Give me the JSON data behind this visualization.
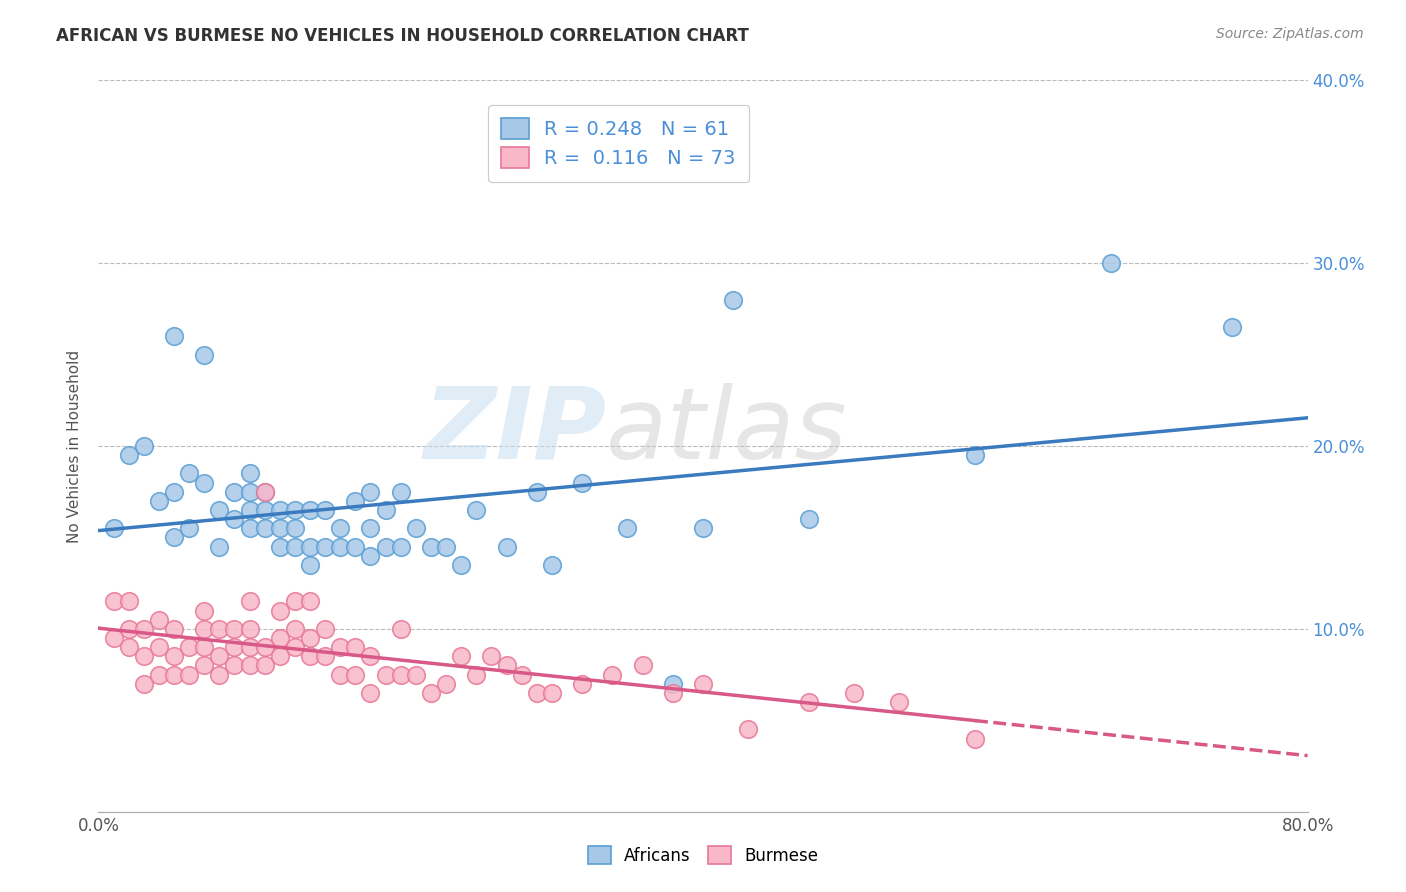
{
  "title": "AFRICAN VS BURMESE NO VEHICLES IN HOUSEHOLD CORRELATION CHART",
  "source": "Source: ZipAtlas.com",
  "ylabel": "No Vehicles in Household",
  "xlim": [
    0.0,
    0.8
  ],
  "ylim": [
    0.0,
    0.4
  ],
  "xticks": [
    0.0,
    0.8
  ],
  "xtick_labels": [
    "0.0%",
    "80.0%"
  ],
  "yticks": [
    0.0,
    0.1,
    0.2,
    0.3,
    0.4
  ],
  "ytick_labels_right": [
    "",
    "10.0%",
    "20.0%",
    "30.0%",
    "40.0%"
  ],
  "africans_color": "#a8c8e8",
  "africans_edge_color": "#5a9fd4",
  "africans_line_color": "#3a7abf",
  "burmese_color": "#f8b8c8",
  "burmese_edge_color": "#e87898",
  "burmese_line_color": "#d85888",
  "background_color": "#ffffff",
  "watermark_zip": "ZIP",
  "watermark_atlas": "atlas",
  "R_african": 0.248,
  "N_african": 61,
  "R_burmese": 0.116,
  "N_burmese": 73,
  "legend_label_african": "Africans",
  "legend_label_burmese": "Burmese",
  "africans_x": [
    0.01,
    0.02,
    0.03,
    0.04,
    0.05,
    0.05,
    0.05,
    0.06,
    0.06,
    0.07,
    0.07,
    0.08,
    0.08,
    0.09,
    0.09,
    0.1,
    0.1,
    0.1,
    0.1,
    0.11,
    0.11,
    0.11,
    0.12,
    0.12,
    0.12,
    0.13,
    0.13,
    0.13,
    0.14,
    0.14,
    0.14,
    0.15,
    0.15,
    0.16,
    0.16,
    0.17,
    0.17,
    0.18,
    0.18,
    0.18,
    0.19,
    0.19,
    0.2,
    0.2,
    0.21,
    0.22,
    0.23,
    0.24,
    0.25,
    0.27,
    0.29,
    0.3,
    0.32,
    0.35,
    0.38,
    0.4,
    0.42,
    0.47,
    0.58,
    0.67,
    0.75
  ],
  "africans_y": [
    0.155,
    0.195,
    0.2,
    0.17,
    0.15,
    0.175,
    0.26,
    0.155,
    0.185,
    0.18,
    0.25,
    0.145,
    0.165,
    0.16,
    0.175,
    0.155,
    0.165,
    0.175,
    0.185,
    0.155,
    0.165,
    0.175,
    0.145,
    0.155,
    0.165,
    0.145,
    0.155,
    0.165,
    0.135,
    0.145,
    0.165,
    0.145,
    0.165,
    0.145,
    0.155,
    0.145,
    0.17,
    0.14,
    0.155,
    0.175,
    0.145,
    0.165,
    0.145,
    0.175,
    0.155,
    0.145,
    0.145,
    0.135,
    0.165,
    0.145,
    0.175,
    0.135,
    0.18,
    0.155,
    0.07,
    0.155,
    0.28,
    0.16,
    0.195,
    0.3,
    0.265
  ],
  "burmese_x": [
    0.01,
    0.01,
    0.02,
    0.02,
    0.02,
    0.03,
    0.03,
    0.03,
    0.04,
    0.04,
    0.04,
    0.05,
    0.05,
    0.05,
    0.06,
    0.06,
    0.07,
    0.07,
    0.07,
    0.07,
    0.08,
    0.08,
    0.08,
    0.09,
    0.09,
    0.09,
    0.1,
    0.1,
    0.1,
    0.1,
    0.11,
    0.11,
    0.11,
    0.12,
    0.12,
    0.12,
    0.13,
    0.13,
    0.13,
    0.14,
    0.14,
    0.14,
    0.15,
    0.15,
    0.16,
    0.16,
    0.17,
    0.17,
    0.18,
    0.18,
    0.19,
    0.2,
    0.2,
    0.21,
    0.22,
    0.23,
    0.24,
    0.25,
    0.26,
    0.27,
    0.28,
    0.29,
    0.3,
    0.32,
    0.34,
    0.36,
    0.38,
    0.4,
    0.43,
    0.47,
    0.5,
    0.53,
    0.58
  ],
  "burmese_y": [
    0.095,
    0.115,
    0.09,
    0.1,
    0.115,
    0.07,
    0.085,
    0.1,
    0.075,
    0.09,
    0.105,
    0.075,
    0.085,
    0.1,
    0.075,
    0.09,
    0.08,
    0.09,
    0.1,
    0.11,
    0.075,
    0.085,
    0.1,
    0.08,
    0.09,
    0.1,
    0.08,
    0.09,
    0.1,
    0.115,
    0.08,
    0.09,
    0.175,
    0.085,
    0.095,
    0.11,
    0.09,
    0.1,
    0.115,
    0.085,
    0.095,
    0.115,
    0.085,
    0.1,
    0.075,
    0.09,
    0.075,
    0.09,
    0.065,
    0.085,
    0.075,
    0.075,
    0.1,
    0.075,
    0.065,
    0.07,
    0.085,
    0.075,
    0.085,
    0.08,
    0.075,
    0.065,
    0.065,
    0.07,
    0.075,
    0.08,
    0.065,
    0.07,
    0.045,
    0.06,
    0.065,
    0.06,
    0.04
  ]
}
